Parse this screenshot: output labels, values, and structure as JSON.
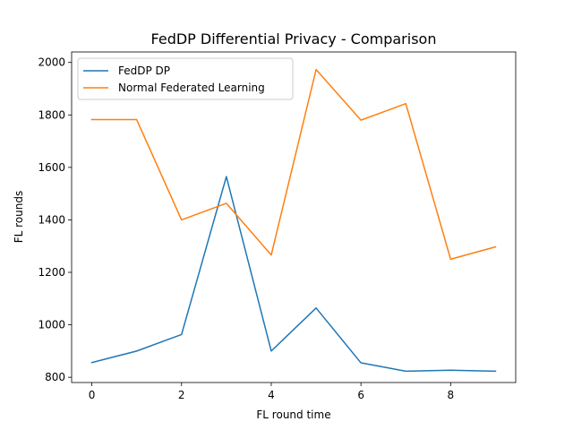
{
  "chart_data": {
    "type": "line",
    "title": "FedDP Differential Privacy - Comparison",
    "xlabel": "FL round time",
    "ylabel": "FL rounds",
    "x": [
      0,
      1,
      2,
      3,
      4,
      5,
      6,
      7,
      8,
      9
    ],
    "xlim": [
      -0.45,
      9.45
    ],
    "ylim": [
      780,
      2040
    ],
    "xticks": [
      0,
      2,
      4,
      6,
      8
    ],
    "yticks": [
      800,
      1000,
      1200,
      1400,
      1600,
      1800,
      2000
    ],
    "grid": false,
    "legend_position": "upper left",
    "series": [
      {
        "name": "FedDP DP",
        "color": "#1f77b4",
        "values": [
          856,
          900,
          963,
          1565,
          900,
          1064,
          855,
          823,
          827,
          823
        ]
      },
      {
        "name": "Normal Federated Learning",
        "color": "#ff7f0e",
        "values": [
          1782,
          1782,
          1400,
          1463,
          1266,
          1973,
          1780,
          1843,
          1250,
          1297
        ]
      }
    ]
  }
}
